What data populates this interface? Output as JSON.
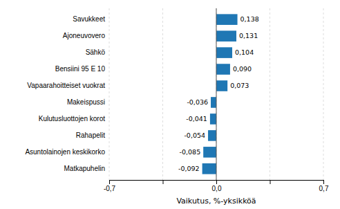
{
  "chart_data": {
    "type": "bar",
    "orientation": "horizontal",
    "categories": [
      "Matkapuhelin",
      "Asuntolainojen keskikorko",
      "Rahapelit",
      "Kulutusluottojen korot",
      "Makeispussi",
      "Vapaarahoitteiset vuokrat",
      "Bensiini 95 E 10",
      "Sähkö",
      "Ajoneuvovero",
      "Savukkeet"
    ],
    "values": [
      -0.092,
      -0.085,
      -0.054,
      -0.041,
      -0.036,
      0.073,
      0.09,
      0.104,
      0.131,
      0.138
    ],
    "value_labels": [
      "-0,092",
      "-0,085",
      "-0,054",
      "-0,041",
      "-0,036",
      "0,073",
      "0,090",
      "0,104",
      "0,131",
      "0,138"
    ],
    "data_labels": true,
    "color": "#1F77B4",
    "xlabel": "Vaikutus, %-yksikköä",
    "xlim": [
      -0.7,
      0.7
    ],
    "xticks": [
      {
        "value": -0.7,
        "label": "-0,7"
      },
      {
        "value": -0.35,
        "label": null
      },
      {
        "value": 0.0,
        "label": "0,0"
      },
      {
        "value": 0.35,
        "label": null
      },
      {
        "value": 0.7,
        "label": "0,7"
      }
    ],
    "grid": true
  }
}
